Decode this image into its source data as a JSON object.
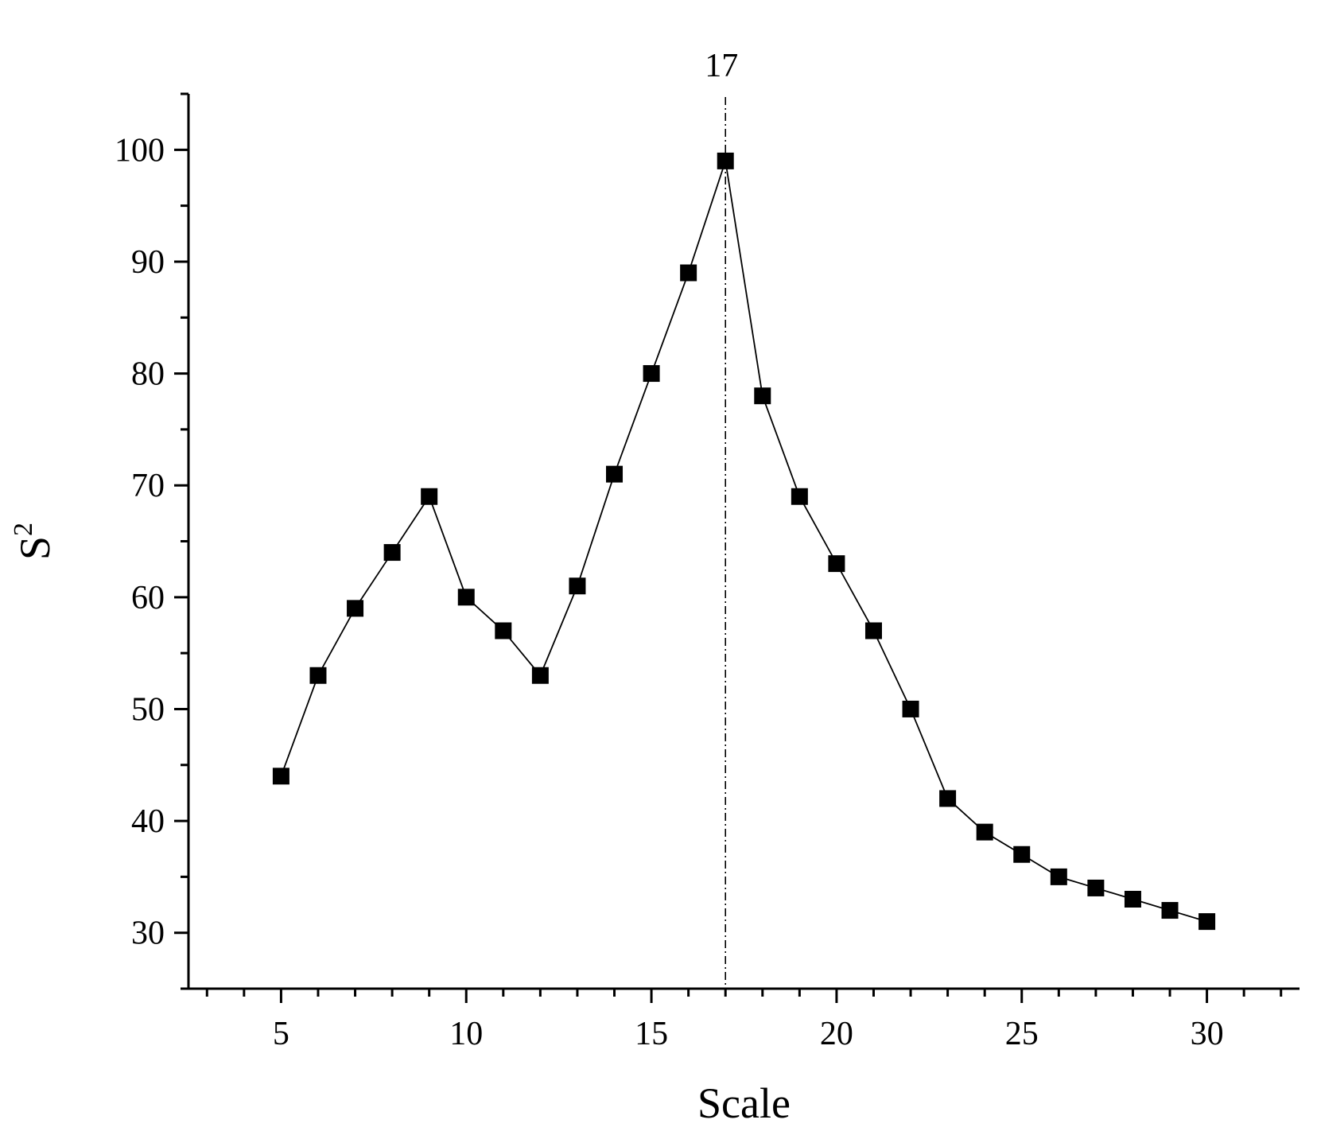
{
  "chart_data": {
    "type": "line",
    "xlabel": "Scale",
    "ylabel": {
      "base": "S",
      "superscript": "2"
    },
    "xlim": [
      2.5,
      32.5
    ],
    "ylim": [
      25,
      105
    ],
    "xticks": [
      5,
      10,
      15,
      20,
      25,
      30
    ],
    "yticks": [
      30,
      40,
      50,
      60,
      70,
      80,
      90,
      100
    ],
    "x_minor_step": 1,
    "y_minor_step": 5,
    "grid": false,
    "marker": "square",
    "color": "#000000",
    "series": [
      {
        "x": [
          5,
          6,
          7,
          8,
          9,
          10,
          11,
          12,
          13,
          14,
          15,
          16,
          17,
          18,
          19,
          20,
          21,
          22,
          23,
          24,
          25,
          26,
          27,
          28,
          29,
          30
        ],
        "values": [
          44,
          53,
          59,
          64,
          69,
          60,
          57,
          53,
          61,
          71,
          80,
          89,
          99,
          78,
          69,
          63,
          57,
          50,
          42,
          39,
          37,
          35,
          34,
          33,
          32,
          31
        ]
      }
    ],
    "reference_line": {
      "x": 17,
      "label": "17",
      "style": "dash-dot"
    }
  }
}
